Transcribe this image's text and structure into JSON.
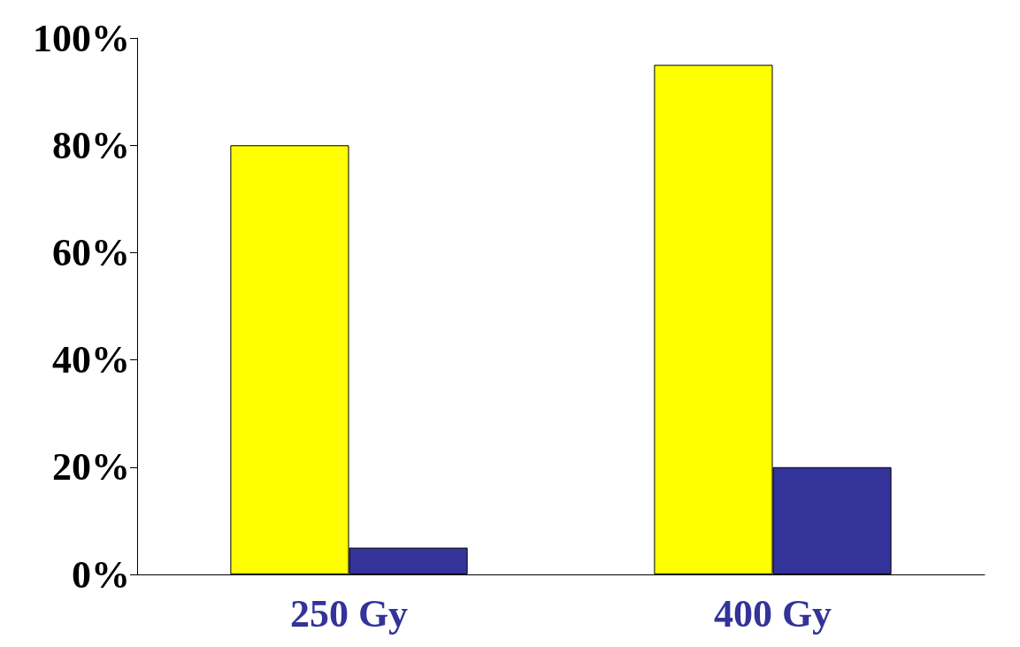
{
  "chart_data": {
    "type": "bar",
    "categories": [
      "250 Gy",
      "400 Gy"
    ],
    "series": [
      {
        "color": "#ffff00",
        "values": [
          80,
          95
        ]
      },
      {
        "color": "#333399",
        "values": [
          5,
          20
        ]
      }
    ],
    "ylim": [
      0,
      100
    ],
    "yticks": [
      {
        "value": 0,
        "label": "0%"
      },
      {
        "value": 20,
        "label": "20%"
      },
      {
        "value": 40,
        "label": "40%"
      },
      {
        "value": 60,
        "label": "60%"
      },
      {
        "value": 80,
        "label": "80%"
      },
      {
        "value": 100,
        "label": "100%"
      }
    ],
    "grid": false
  }
}
